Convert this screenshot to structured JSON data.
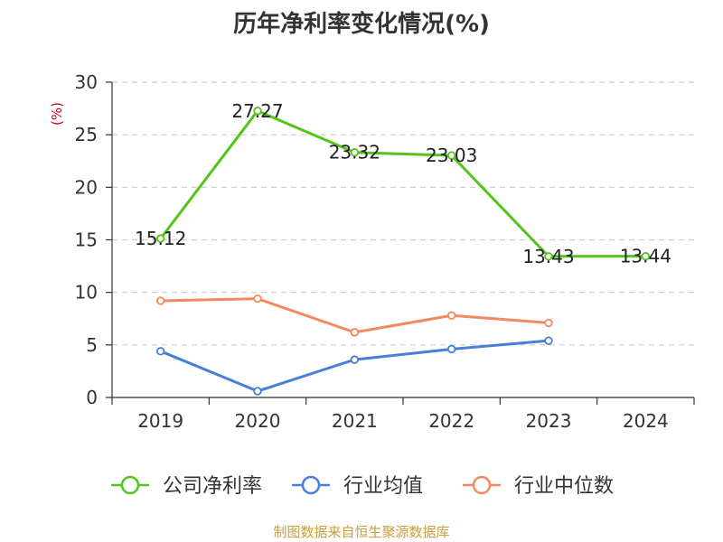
{
  "chart_data": {
    "type": "line",
    "title": "历年净利率变化情况(%)",
    "ylabel": "(%)",
    "categories": [
      "2019",
      "2020",
      "2021",
      "2022",
      "2023",
      "2024"
    ],
    "ylim": [
      0,
      30
    ],
    "yticks": [
      0,
      5,
      10,
      15,
      20,
      25,
      30
    ],
    "grid": true,
    "legend_position": "bottom",
    "series": [
      {
        "name": "公司净利率",
        "color": "#52c41a",
        "values": [
          15.12,
          27.27,
          23.32,
          23.03,
          13.43,
          13.44
        ],
        "labels": [
          "15.12",
          "27.27",
          "23.32",
          "23.03",
          "13.43",
          "13.44"
        ]
      },
      {
        "name": "行业均值",
        "color": "#4a7fd8",
        "values": [
          4.4,
          0.6,
          3.6,
          4.6,
          5.4,
          null
        ]
      },
      {
        "name": "行业中位数",
        "color": "#f4895f",
        "values": [
          9.2,
          9.4,
          6.2,
          7.8,
          7.1,
          null
        ]
      }
    ]
  },
  "colors": {
    "unit_label": "#d9001b",
    "source_note": "#c8a03c",
    "axis": "#333333",
    "grid": "#cccccc"
  },
  "source_note": "制图数据来自恒生聚源数据库"
}
